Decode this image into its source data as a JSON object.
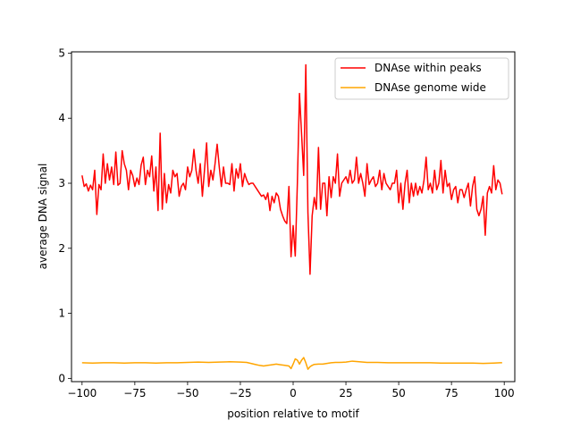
{
  "chart_data": {
    "type": "line",
    "xlabel": "position relative to motif",
    "ylabel": "average DNA signal",
    "xlim": [
      -105,
      105
    ],
    "ylim": [
      -0.05,
      5.02
    ],
    "xticks": [
      -100,
      -75,
      -50,
      -25,
      0,
      25,
      50,
      75,
      100
    ],
    "yticks": [
      0,
      1,
      2,
      3,
      4,
      5
    ],
    "grid": false,
    "legend_position": "top-right",
    "series": [
      {
        "name": "DNAse within peaks",
        "color": "#ff0000",
        "points": [
          [
            -100,
            3.12
          ],
          [
            -99,
            2.95
          ],
          [
            -98,
            2.99
          ],
          [
            -97,
            2.88
          ],
          [
            -96,
            2.97
          ],
          [
            -95,
            2.9
          ],
          [
            -94,
            3.2
          ],
          [
            -93,
            2.52
          ],
          [
            -92,
            2.98
          ],
          [
            -91,
            2.9
          ],
          [
            -90,
            3.45
          ],
          [
            -89,
            3.0
          ],
          [
            -88,
            3.3
          ],
          [
            -87,
            3.05
          ],
          [
            -86,
            3.25
          ],
          [
            -85,
            2.98
          ],
          [
            -84,
            3.48
          ],
          [
            -83,
            2.97
          ],
          [
            -82,
            3.0
          ],
          [
            -81,
            3.5
          ],
          [
            -80,
            3.3
          ],
          [
            -79,
            3.2
          ],
          [
            -78,
            2.9
          ],
          [
            -77,
            3.2
          ],
          [
            -76,
            3.12
          ],
          [
            -75,
            2.95
          ],
          [
            -74,
            3.08
          ],
          [
            -73,
            2.98
          ],
          [
            -72,
            3.28
          ],
          [
            -71,
            3.4
          ],
          [
            -70,
            2.98
          ],
          [
            -69,
            3.2
          ],
          [
            -68,
            3.1
          ],
          [
            -67,
            3.42
          ],
          [
            -66,
            2.88
          ],
          [
            -65,
            3.25
          ],
          [
            -64,
            2.58
          ],
          [
            -63,
            3.77
          ],
          [
            -62,
            2.6
          ],
          [
            -61,
            3.15
          ],
          [
            -60,
            2.7
          ],
          [
            -59,
            2.98
          ],
          [
            -58,
            2.85
          ],
          [
            -57,
            3.2
          ],
          [
            -56,
            3.1
          ],
          [
            -55,
            3.15
          ],
          [
            -54,
            2.8
          ],
          [
            -53,
            2.95
          ],
          [
            -52,
            3.0
          ],
          [
            -51,
            2.9
          ],
          [
            -50,
            3.25
          ],
          [
            -49,
            3.1
          ],
          [
            -48,
            3.2
          ],
          [
            -47,
            3.52
          ],
          [
            -46,
            3.2
          ],
          [
            -45,
            3.0
          ],
          [
            -44,
            3.3
          ],
          [
            -43,
            2.8
          ],
          [
            -42,
            3.2
          ],
          [
            -41,
            3.62
          ],
          [
            -40,
            2.95
          ],
          [
            -39,
            3.2
          ],
          [
            -38,
            3.05
          ],
          [
            -37,
            3.3
          ],
          [
            -36,
            3.6
          ],
          [
            -35,
            3.25
          ],
          [
            -34,
            2.95
          ],
          [
            -33,
            3.25
          ],
          [
            -32,
            3.0
          ],
          [
            -31,
            3.0
          ],
          [
            -30,
            2.98
          ],
          [
            -29,
            3.3
          ],
          [
            -28,
            2.88
          ],
          [
            -27,
            3.22
          ],
          [
            -26,
            3.08
          ],
          [
            -25,
            3.3
          ],
          [
            -24,
            2.95
          ],
          [
            -23,
            3.15
          ],
          [
            -22,
            3.05
          ],
          [
            -21,
            2.98
          ],
          [
            -20,
            3.0
          ],
          [
            -19,
            3.0
          ],
          [
            -18,
            2.95
          ],
          [
            -17,
            2.9
          ],
          [
            -16,
            2.85
          ],
          [
            -15,
            2.8
          ],
          [
            -14,
            2.82
          ],
          [
            -13,
            2.75
          ],
          [
            -12,
            2.85
          ],
          [
            -11,
            2.58
          ],
          [
            -10,
            2.8
          ],
          [
            -9,
            2.7
          ],
          [
            -8,
            2.85
          ],
          [
            -7,
            2.8
          ],
          [
            -6,
            2.6
          ],
          [
            -5,
            2.5
          ],
          [
            -4,
            2.42
          ],
          [
            -3,
            2.38
          ],
          [
            -2,
            2.95
          ],
          [
            -1,
            1.87
          ],
          [
            0,
            2.35
          ],
          [
            1,
            1.88
          ],
          [
            2,
            3.0
          ],
          [
            3,
            4.38
          ],
          [
            4,
            3.75
          ],
          [
            5,
            3.12
          ],
          [
            6,
            4.82
          ],
          [
            7,
            2.55
          ],
          [
            8,
            1.6
          ],
          [
            9,
            2.5
          ],
          [
            10,
            2.78
          ],
          [
            11,
            2.6
          ],
          [
            12,
            3.55
          ],
          [
            13,
            2.6
          ],
          [
            14,
            3.0
          ],
          [
            15,
            3.0
          ],
          [
            16,
            2.5
          ],
          [
            17,
            3.1
          ],
          [
            18,
            2.78
          ],
          [
            19,
            3.1
          ],
          [
            20,
            3.0
          ],
          [
            21,
            3.45
          ],
          [
            22,
            2.8
          ],
          [
            23,
            3.0
          ],
          [
            24,
            3.05
          ],
          [
            25,
            3.1
          ],
          [
            26,
            3.0
          ],
          [
            27,
            3.2
          ],
          [
            28,
            3.0
          ],
          [
            29,
            3.05
          ],
          [
            30,
            3.4
          ],
          [
            31,
            3.0
          ],
          [
            32,
            3.15
          ],
          [
            33,
            3.0
          ],
          [
            34,
            2.8
          ],
          [
            35,
            3.3
          ],
          [
            36,
            2.98
          ],
          [
            37,
            3.05
          ],
          [
            38,
            3.1
          ],
          [
            39,
            2.95
          ],
          [
            40,
            3.0
          ],
          [
            41,
            3.2
          ],
          [
            42,
            2.9
          ],
          [
            43,
            3.15
          ],
          [
            44,
            3.0
          ],
          [
            45,
            2.95
          ],
          [
            46,
            2.9
          ],
          [
            47,
            3.0
          ],
          [
            48,
            3.0
          ],
          [
            49,
            3.2
          ],
          [
            50,
            2.7
          ],
          [
            51,
            3.0
          ],
          [
            52,
            2.6
          ],
          [
            53,
            3.0
          ],
          [
            54,
            3.2
          ],
          [
            55,
            2.7
          ],
          [
            56,
            3.0
          ],
          [
            57,
            2.8
          ],
          [
            58,
            3.0
          ],
          [
            59,
            2.82
          ],
          [
            60,
            2.95
          ],
          [
            61,
            2.85
          ],
          [
            62,
            3.05
          ],
          [
            63,
            3.4
          ],
          [
            64,
            2.9
          ],
          [
            65,
            3.0
          ],
          [
            66,
            2.85
          ],
          [
            67,
            3.2
          ],
          [
            68,
            2.9
          ],
          [
            69,
            3.0
          ],
          [
            70,
            3.35
          ],
          [
            71,
            2.85
          ],
          [
            72,
            3.2
          ],
          [
            73,
            2.95
          ],
          [
            74,
            3.0
          ],
          [
            75,
            2.75
          ],
          [
            76,
            2.9
          ],
          [
            77,
            2.95
          ],
          [
            78,
            2.7
          ],
          [
            79,
            2.9
          ],
          [
            80,
            2.9
          ],
          [
            81,
            2.78
          ],
          [
            82,
            2.9
          ],
          [
            83,
            3.0
          ],
          [
            84,
            2.65
          ],
          [
            85,
            2.95
          ],
          [
            86,
            3.1
          ],
          [
            87,
            2.6
          ],
          [
            88,
            2.5
          ],
          [
            89,
            2.6
          ],
          [
            90,
            2.8
          ],
          [
            91,
            2.2
          ],
          [
            92,
            2.85
          ],
          [
            93,
            2.95
          ],
          [
            94,
            2.85
          ],
          [
            95,
            3.27
          ],
          [
            96,
            2.9
          ],
          [
            97,
            3.05
          ],
          [
            98,
            3.0
          ],
          [
            99,
            2.83
          ]
        ]
      },
      {
        "name": "DNAse genome wide",
        "color": "#ffa500",
        "points": [
          [
            -100,
            0.24
          ],
          [
            -95,
            0.235
          ],
          [
            -90,
            0.24
          ],
          [
            -85,
            0.24
          ],
          [
            -80,
            0.235
          ],
          [
            -75,
            0.24
          ],
          [
            -70,
            0.24
          ],
          [
            -65,
            0.235
          ],
          [
            -60,
            0.24
          ],
          [
            -55,
            0.24
          ],
          [
            -50,
            0.245
          ],
          [
            -45,
            0.25
          ],
          [
            -40,
            0.245
          ],
          [
            -35,
            0.25
          ],
          [
            -30,
            0.255
          ],
          [
            -25,
            0.25
          ],
          [
            -22,
            0.245
          ],
          [
            -20,
            0.23
          ],
          [
            -18,
            0.215
          ],
          [
            -16,
            0.2
          ],
          [
            -14,
            0.19
          ],
          [
            -12,
            0.2
          ],
          [
            -10,
            0.21
          ],
          [
            -8,
            0.22
          ],
          [
            -6,
            0.21
          ],
          [
            -4,
            0.2
          ],
          [
            -2,
            0.19
          ],
          [
            -1,
            0.15
          ],
          [
            0,
            0.22
          ],
          [
            1,
            0.3
          ],
          [
            2,
            0.28
          ],
          [
            3,
            0.22
          ],
          [
            4,
            0.28
          ],
          [
            5,
            0.32
          ],
          [
            6,
            0.24
          ],
          [
            7,
            0.14
          ],
          [
            8,
            0.18
          ],
          [
            9,
            0.2
          ],
          [
            10,
            0.215
          ],
          [
            12,
            0.22
          ],
          [
            14,
            0.22
          ],
          [
            16,
            0.23
          ],
          [
            18,
            0.24
          ],
          [
            20,
            0.245
          ],
          [
            22,
            0.245
          ],
          [
            25,
            0.25
          ],
          [
            28,
            0.265
          ],
          [
            30,
            0.26
          ],
          [
            35,
            0.245
          ],
          [
            40,
            0.245
          ],
          [
            45,
            0.24
          ],
          [
            50,
            0.24
          ],
          [
            55,
            0.24
          ],
          [
            60,
            0.24
          ],
          [
            65,
            0.24
          ],
          [
            70,
            0.235
          ],
          [
            75,
            0.235
          ],
          [
            80,
            0.235
          ],
          [
            85,
            0.235
          ],
          [
            90,
            0.23
          ],
          [
            95,
            0.235
          ],
          [
            98,
            0.24
          ],
          [
            99,
            0.24
          ]
        ]
      }
    ]
  }
}
